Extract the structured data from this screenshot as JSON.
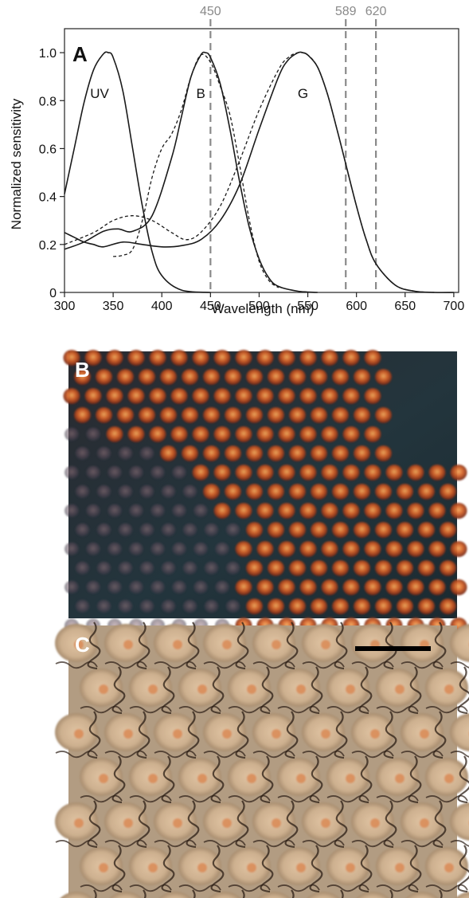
{
  "chart_data": {
    "type": "line",
    "panel_label": "A",
    "xlabel": "Wavelength (nm)",
    "ylabel": "Normalized sensitivity",
    "xlim": [
      300,
      705
    ],
    "ylim": [
      0,
      1.1
    ],
    "x_ticks": [
      300,
      350,
      400,
      450,
      500,
      550,
      600,
      650,
      700
    ],
    "y_ticks": [
      0,
      0.2,
      0.4,
      0.6,
      0.8,
      1.0
    ],
    "y_tick_labels": [
      "0",
      "0.2",
      "0.4",
      "0.6",
      "0.8",
      "1.0"
    ],
    "grid": false,
    "annotations": [
      {
        "text": "UV",
        "x": 336,
        "y": 0.83
      },
      {
        "text": "B",
        "x": 440,
        "y": 0.83
      },
      {
        "text": "G",
        "x": 545,
        "y": 0.83
      }
    ],
    "reference_lines": [
      {
        "x": 450,
        "label": "450"
      },
      {
        "x": 589,
        "label": "589"
      },
      {
        "x": 620,
        "label": "620"
      }
    ],
    "series": [
      {
        "style": "solid",
        "x": [
          300,
          310,
          320,
          330,
          340,
          345,
          350,
          360,
          370,
          380,
          390,
          400,
          420,
          450
        ],
        "y": [
          0.41,
          0.6,
          0.79,
          0.93,
          0.995,
          1.0,
          0.98,
          0.84,
          0.6,
          0.36,
          0.17,
          0.07,
          0.01,
          0.0
        ]
      },
      {
        "style": "solid",
        "x": [
          300,
          320,
          340,
          355,
          370,
          390,
          410,
          420,
          430,
          440,
          445,
          450,
          460,
          470,
          480,
          490,
          500,
          510,
          520,
          540,
          560
        ],
        "y": [
          0.18,
          0.21,
          0.255,
          0.265,
          0.255,
          0.32,
          0.56,
          0.73,
          0.9,
          0.99,
          1.0,
          0.98,
          0.87,
          0.68,
          0.46,
          0.27,
          0.14,
          0.06,
          0.025,
          0.005,
          0.0
        ]
      },
      {
        "style": "dashed",
        "x": [
          350,
          360,
          370,
          380,
          390,
          400,
          410,
          420,
          430,
          440,
          450,
          460,
          470,
          480,
          490,
          500,
          510,
          520
        ],
        "y": [
          0.15,
          0.155,
          0.18,
          0.3,
          0.48,
          0.6,
          0.66,
          0.76,
          0.9,
          0.99,
          0.96,
          0.86,
          0.74,
          0.53,
          0.3,
          0.13,
          0.05,
          0.02
        ]
      },
      {
        "style": "solid",
        "x": [
          300,
          310,
          320,
          330,
          340,
          360,
          380,
          400,
          420,
          440,
          460,
          480,
          500,
          520,
          530,
          540,
          545,
          550,
          560,
          570,
          580,
          590,
          600,
          610,
          620,
          640,
          660,
          680,
          700
        ],
        "y": [
          0.25,
          0.23,
          0.21,
          0.2,
          0.19,
          0.21,
          0.2,
          0.19,
          0.195,
          0.22,
          0.3,
          0.45,
          0.68,
          0.9,
          0.97,
          1.0,
          1.0,
          0.99,
          0.94,
          0.83,
          0.68,
          0.52,
          0.36,
          0.22,
          0.12,
          0.03,
          0.005,
          0.0,
          0.0
        ]
      },
      {
        "style": "dashed",
        "x": [
          300,
          330,
          350,
          370,
          390,
          410,
          425,
          440,
          460,
          480,
          500,
          520,
          530,
          540,
          550,
          560,
          570,
          580,
          590,
          600,
          610,
          620,
          640,
          660,
          680
        ],
        "y": [
          0.2,
          0.25,
          0.3,
          0.32,
          0.3,
          0.25,
          0.22,
          0.25,
          0.36,
          0.55,
          0.76,
          0.93,
          0.98,
          1.0,
          0.99,
          0.94,
          0.83,
          0.68,
          0.52,
          0.36,
          0.22,
          0.12,
          0.03,
          0.005,
          0.0
        ]
      }
    ]
  },
  "panels": {
    "b_label": "B",
    "c_label": "C"
  },
  "colors": {
    "axis": "#222222",
    "curve": "#1a1a1a",
    "reference_line": "#8a8a8a",
    "reference_label": "#8a8a8a",
    "panel_letter_on_photo": "#ffffff",
    "scale_bar": "#000000"
  }
}
